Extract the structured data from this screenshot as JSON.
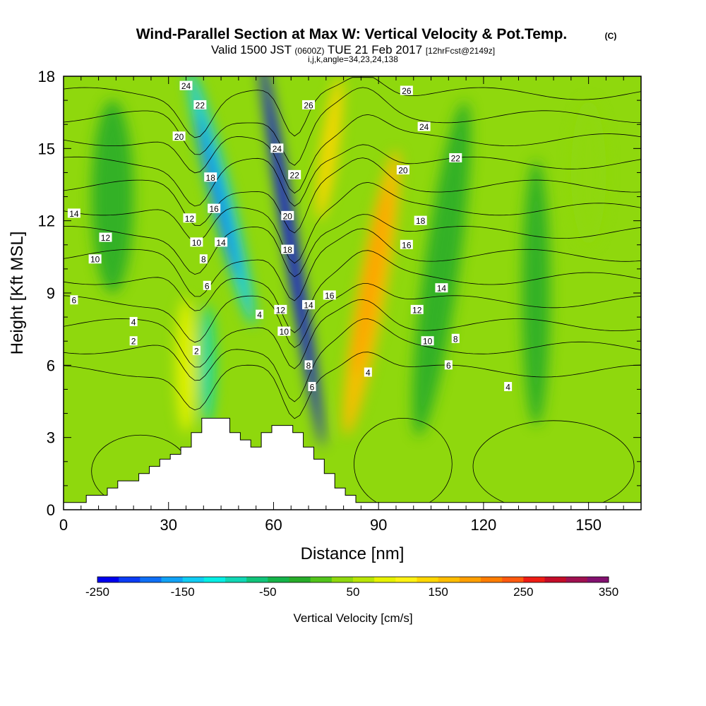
{
  "title": {
    "main": "Wind-Parallel Section at Max W: Vertical Velocity & Pot.Temp.",
    "copyright": "(C)",
    "valid_prefix": "Valid 1500 JST",
    "valid_utc": "(0600Z)",
    "valid_date": "TUE 21 Feb 2017",
    "forecast": "[12hrFcst@2149z]",
    "indices": "i,j,k,angle=34,23,24,138"
  },
  "chart_data": {
    "type": "heatmap",
    "xlabel": "Distance [nm]",
    "ylabel": "Height [Kft MSL]",
    "xlim": [
      0,
      165
    ],
    "ylim": [
      0,
      18
    ],
    "xticks": [
      0,
      30,
      60,
      90,
      120,
      150
    ],
    "yticks": [
      0,
      3,
      6,
      9,
      12,
      15,
      18
    ],
    "grid": false,
    "colorbar": {
      "label": "Vertical Velocity [cm/s]",
      "min": -250,
      "max": 350,
      "step": 25,
      "tick_values": [
        -250,
        -150,
        -50,
        50,
        150,
        250,
        350
      ],
      "colors": [
        "#0000ee",
        "#0b3cf5",
        "#0f6ff6",
        "#11a2f6",
        "#10ccf4",
        "#05eee5",
        "#10d7b5",
        "#10c47a",
        "#14b449",
        "#27ad29",
        "#52c41b",
        "#8fd80d",
        "#b9e505",
        "#e7f200",
        "#fff214",
        "#ffd700",
        "#ffbd00",
        "#ff9f00",
        "#ff7d00",
        "#ff5a0f",
        "#ee1c14",
        "#c40c28",
        "#a01050",
        "#82106f"
      ]
    },
    "terrain": [
      [
        0,
        0.3
      ],
      [
        6.5,
        0.3
      ],
      [
        6.5,
        0.6
      ],
      [
        12.5,
        0.6
      ],
      [
        12.5,
        0.9
      ],
      [
        15.5,
        0.9
      ],
      [
        15.5,
        1.2
      ],
      [
        21.5,
        1.2
      ],
      [
        21.5,
        1.5
      ],
      [
        24.5,
        1.5
      ],
      [
        24.5,
        1.8
      ],
      [
        27.5,
        1.8
      ],
      [
        27.5,
        2.1
      ],
      [
        30.5,
        2.1
      ],
      [
        30.5,
        2.3
      ],
      [
        33.5,
        2.3
      ],
      [
        33.5,
        2.6
      ],
      [
        36.5,
        2.6
      ],
      [
        36.5,
        3.2
      ],
      [
        39.5,
        3.2
      ],
      [
        39.5,
        3.8
      ],
      [
        47.5,
        3.8
      ],
      [
        47.5,
        3.2
      ],
      [
        50.5,
        3.2
      ],
      [
        50.5,
        2.9
      ],
      [
        53.5,
        2.9
      ],
      [
        53.5,
        2.6
      ],
      [
        56.5,
        2.6
      ],
      [
        56.5,
        3.2
      ],
      [
        59.5,
        3.2
      ],
      [
        59.5,
        3.5
      ],
      [
        65.5,
        3.5
      ],
      [
        65.5,
        3.2
      ],
      [
        68.5,
        3.2
      ],
      [
        68.5,
        2.6
      ],
      [
        71.5,
        2.6
      ],
      [
        71.5,
        2.1
      ],
      [
        74.5,
        2.1
      ],
      [
        74.5,
        1.5
      ],
      [
        77.5,
        1.5
      ],
      [
        77.5,
        0.9
      ],
      [
        80.5,
        0.9
      ],
      [
        80.5,
        0.6
      ],
      [
        83.5,
        0.6
      ],
      [
        83.5,
        0.3
      ],
      [
        165,
        0.3
      ]
    ],
    "velocity_features": [
      {
        "x": 65,
        "y": 11,
        "value": -250
      },
      {
        "x": 45,
        "y": 13,
        "value": -150
      },
      {
        "x": 41,
        "y": 6,
        "value": -100
      },
      {
        "x": 88,
        "y": 9,
        "value": 150
      },
      {
        "x": 76,
        "y": 15,
        "value": 125
      },
      {
        "x": 35,
        "y": 6,
        "value": 75
      },
      {
        "x": 14,
        "y": 13,
        "value": -25
      },
      {
        "x": 108,
        "y": 10,
        "value": -25
      },
      {
        "x": 135,
        "y": 9,
        "value": -25
      },
      {
        "x": 150,
        "y": 14,
        "value": 25
      }
    ],
    "theta_contours": [
      2,
      4,
      6,
      8,
      10,
      12,
      14,
      16,
      18,
      20,
      22,
      24,
      26
    ],
    "contour_labels": [
      {
        "text": "24",
        "x": 35,
        "y": 17.6
      },
      {
        "text": "22",
        "x": 39,
        "y": 16.8
      },
      {
        "text": "20",
        "x": 33,
        "y": 15.5
      },
      {
        "text": "18",
        "x": 42,
        "y": 13.8
      },
      {
        "text": "16",
        "x": 43,
        "y": 12.5
      },
      {
        "text": "14",
        "x": 45,
        "y": 11.1
      },
      {
        "text": "12",
        "x": 36,
        "y": 12.1
      },
      {
        "text": "10",
        "x": 38,
        "y": 11.1
      },
      {
        "text": "8",
        "x": 40,
        "y": 10.4
      },
      {
        "text": "6",
        "x": 41,
        "y": 9.3
      },
      {
        "text": "2",
        "x": 38,
        "y": 6.6
      },
      {
        "text": "24",
        "x": 61,
        "y": 15.0
      },
      {
        "text": "22",
        "x": 66,
        "y": 13.9
      },
      {
        "text": "26",
        "x": 70,
        "y": 16.8
      },
      {
        "text": "20",
        "x": 64,
        "y": 12.2
      },
      {
        "text": "18",
        "x": 64,
        "y": 10.8
      },
      {
        "text": "16",
        "x": 76,
        "y": 8.9
      },
      {
        "text": "14",
        "x": 70,
        "y": 8.5
      },
      {
        "text": "12",
        "x": 62,
        "y": 8.3
      },
      {
        "text": "10",
        "x": 63,
        "y": 7.4
      },
      {
        "text": "8",
        "x": 70,
        "y": 6.0
      },
      {
        "text": "6",
        "x": 71,
        "y": 5.1
      },
      {
        "text": "4",
        "x": 56,
        "y": 8.1
      },
      {
        "text": "14",
        "x": 3,
        "y": 12.3
      },
      {
        "text": "12",
        "x": 12,
        "y": 11.3
      },
      {
        "text": "10",
        "x": 9,
        "y": 10.4
      },
      {
        "text": "6",
        "x": 3,
        "y": 8.7
      },
      {
        "text": "4",
        "x": 20,
        "y": 7.8
      },
      {
        "text": "2",
        "x": 20,
        "y": 7.0
      },
      {
        "text": "26",
        "x": 98,
        "y": 17.4
      },
      {
        "text": "24",
        "x": 103,
        "y": 15.9
      },
      {
        "text": "22",
        "x": 112,
        "y": 14.6
      },
      {
        "text": "20",
        "x": 97,
        "y": 14.1
      },
      {
        "text": "18",
        "x": 102,
        "y": 12.0
      },
      {
        "text": "16",
        "x": 98,
        "y": 11.0
      },
      {
        "text": "14",
        "x": 108,
        "y": 9.2
      },
      {
        "text": "12",
        "x": 101,
        "y": 8.3
      },
      {
        "text": "10",
        "x": 104,
        "y": 7.0
      },
      {
        "text": "8",
        "x": 112,
        "y": 7.1
      },
      {
        "text": "6",
        "x": 110,
        "y": 6.0
      },
      {
        "text": "4",
        "x": 87,
        "y": 5.7
      },
      {
        "text": "4",
        "x": 127,
        "y": 5.1
      }
    ]
  }
}
